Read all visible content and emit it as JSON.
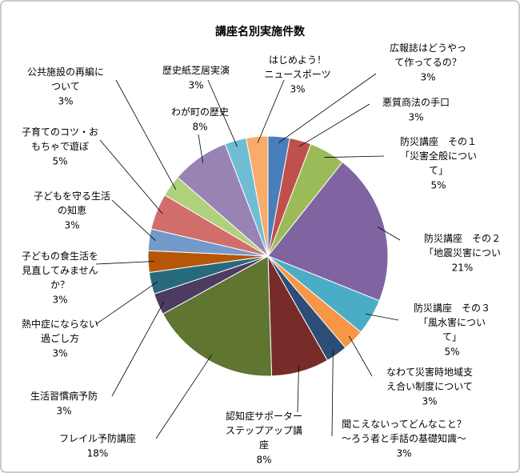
{
  "chart_data": {
    "type": "pie",
    "title": "講座名別実施件数",
    "categories": [
      "広報誌はどうやっ\nて作ってるの？",
      "悪質商法の手口",
      "防災講座　その１\n「災害全般につい\nて」",
      "防災講座　その２\n「地震災害につい",
      "防災講座　その３\n「風水害につい\nて」",
      "なわて災害時地域支\nえ合い制度について",
      "聞こえないってどんなこと？\n～ろう者と手話の基礎知識～",
      "認知症サポーター\nステップアップ講\n座",
      "フレイル予防講座",
      "生活習慣病予防",
      "熱中症にならない\n過ごし方",
      "子どもの食生活を\n見直してみません\nか？",
      "子どもを守る生活\nの知恵",
      "子育てのコツ・お\nもちゃで遊ぼ",
      "公共施設の再編に\nついて",
      "わが町の歴史",
      "歴史紙芝居実演",
      "はじめよう！\nニュースポーツ"
    ],
    "values": [
      3,
      3,
      5,
      21,
      5,
      3,
      3,
      8,
      18,
      3,
      3,
      3,
      3,
      5,
      3,
      8,
      3,
      3
    ],
    "value_labels": [
      "3%",
      "3%",
      "5%",
      "21%",
      "5%",
      "3%",
      "3%",
      "8%",
      "18%",
      "3%",
      "3%",
      "3%",
      "3%",
      "5%",
      "3%",
      "8%",
      "3%",
      "3%"
    ],
    "colors": [
      "#4a7ebb",
      "#c0504d",
      "#9bbb59",
      "#8064a2",
      "#4bacc6",
      "#f79646",
      "#2c4d75",
      "#772c2a",
      "#5f7530",
      "#4d3b62",
      "#276a7c",
      "#b65708",
      "#729aca",
      "#d16e6b",
      "#afd17c",
      "#9983b5",
      "#6fbdd3",
      "#f9ab6b"
    ]
  }
}
